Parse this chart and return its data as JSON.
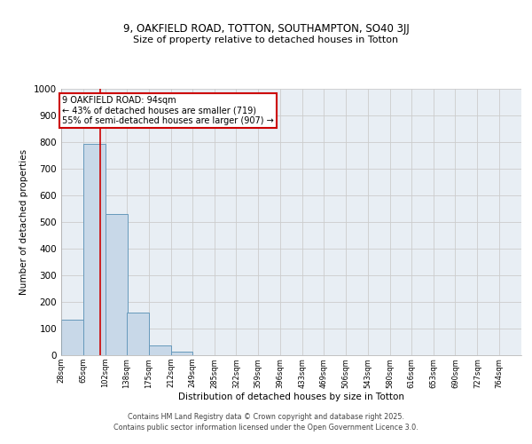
{
  "title_line1": "9, OAKFIELD ROAD, TOTTON, SOUTHAMPTON, SO40 3JJ",
  "title_line2": "Size of property relative to detached houses in Totton",
  "xlabel": "Distribution of detached houses by size in Totton",
  "ylabel": "Number of detached properties",
  "bin_labels": [
    "28sqm",
    "65sqm",
    "102sqm",
    "138sqm",
    "175sqm",
    "212sqm",
    "249sqm",
    "285sqm",
    "322sqm",
    "359sqm",
    "396sqm",
    "433sqm",
    "469sqm",
    "506sqm",
    "543sqm",
    "580sqm",
    "616sqm",
    "653sqm",
    "690sqm",
    "727sqm",
    "764sqm"
  ],
  "bin_edges": [
    28,
    65,
    102,
    138,
    175,
    212,
    249,
    285,
    322,
    359,
    396,
    433,
    469,
    506,
    543,
    580,
    616,
    653,
    690,
    727,
    764
  ],
  "bar_heights": [
    133,
    795,
    530,
    160,
    37,
    12,
    0,
    0,
    0,
    0,
    0,
    0,
    0,
    0,
    0,
    0,
    0,
    0,
    0,
    0
  ],
  "bar_color": "#c8d8e8",
  "bar_edge_color": "#6699bb",
  "grid_color": "#cccccc",
  "background_color": "#e8eef4",
  "red_line_x": 94,
  "annotation_line1": "9 OAKFIELD ROAD: 94sqm",
  "annotation_line2": "← 43% of detached houses are smaller (719)",
  "annotation_line3": "55% of semi-detached houses are larger (907) →",
  "annotation_box_color": "#cc0000",
  "ylim": [
    0,
    1000
  ],
  "yticks": [
    0,
    100,
    200,
    300,
    400,
    500,
    600,
    700,
    800,
    900,
    1000
  ],
  "footer_line1": "Contains HM Land Registry data © Crown copyright and database right 2025.",
  "footer_line2": "Contains public sector information licensed under the Open Government Licence 3.0."
}
